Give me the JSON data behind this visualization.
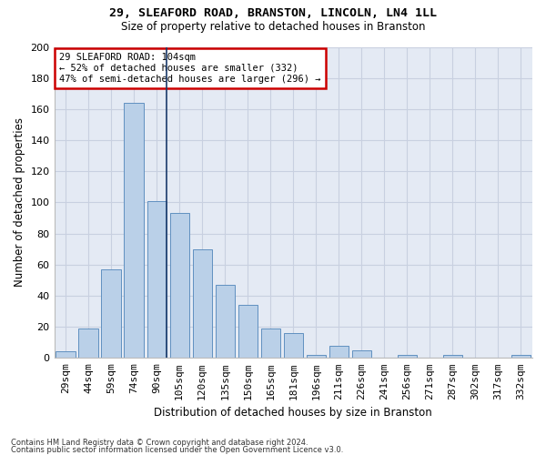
{
  "title1": "29, SLEAFORD ROAD, BRANSTON, LINCOLN, LN4 1LL",
  "title2": "Size of property relative to detached houses in Branston",
  "xlabel": "Distribution of detached houses by size in Branston",
  "ylabel": "Number of detached properties",
  "categories": [
    "29sqm",
    "44sqm",
    "59sqm",
    "74sqm",
    "90sqm",
    "105sqm",
    "120sqm",
    "135sqm",
    "150sqm",
    "165sqm",
    "181sqm",
    "196sqm",
    "211sqm",
    "226sqm",
    "241sqm",
    "256sqm",
    "271sqm",
    "287sqm",
    "302sqm",
    "317sqm",
    "332sqm"
  ],
  "values": [
    4,
    19,
    57,
    164,
    101,
    93,
    70,
    47,
    34,
    19,
    16,
    2,
    8,
    5,
    0,
    2,
    0,
    2,
    0,
    0,
    2
  ],
  "bar_color": "#bad0e8",
  "bar_edge_color": "#6090c0",
  "highlight_index": 4,
  "highlight_line_color": "#1a3a6a",
  "annotation_box_color": "#cc0000",
  "annotation_text": "29 SLEAFORD ROAD: 104sqm\n← 52% of detached houses are smaller (332)\n47% of semi-detached houses are larger (296) →",
  "ylim": [
    0,
    200
  ],
  "yticks": [
    0,
    20,
    40,
    60,
    80,
    100,
    120,
    140,
    160,
    180,
    200
  ],
  "grid_color": "#c8d0e0",
  "bg_color": "#e4eaf4",
  "footer1": "Contains HM Land Registry data © Crown copyright and database right 2024.",
  "footer2": "Contains public sector information licensed under the Open Government Licence v3.0."
}
